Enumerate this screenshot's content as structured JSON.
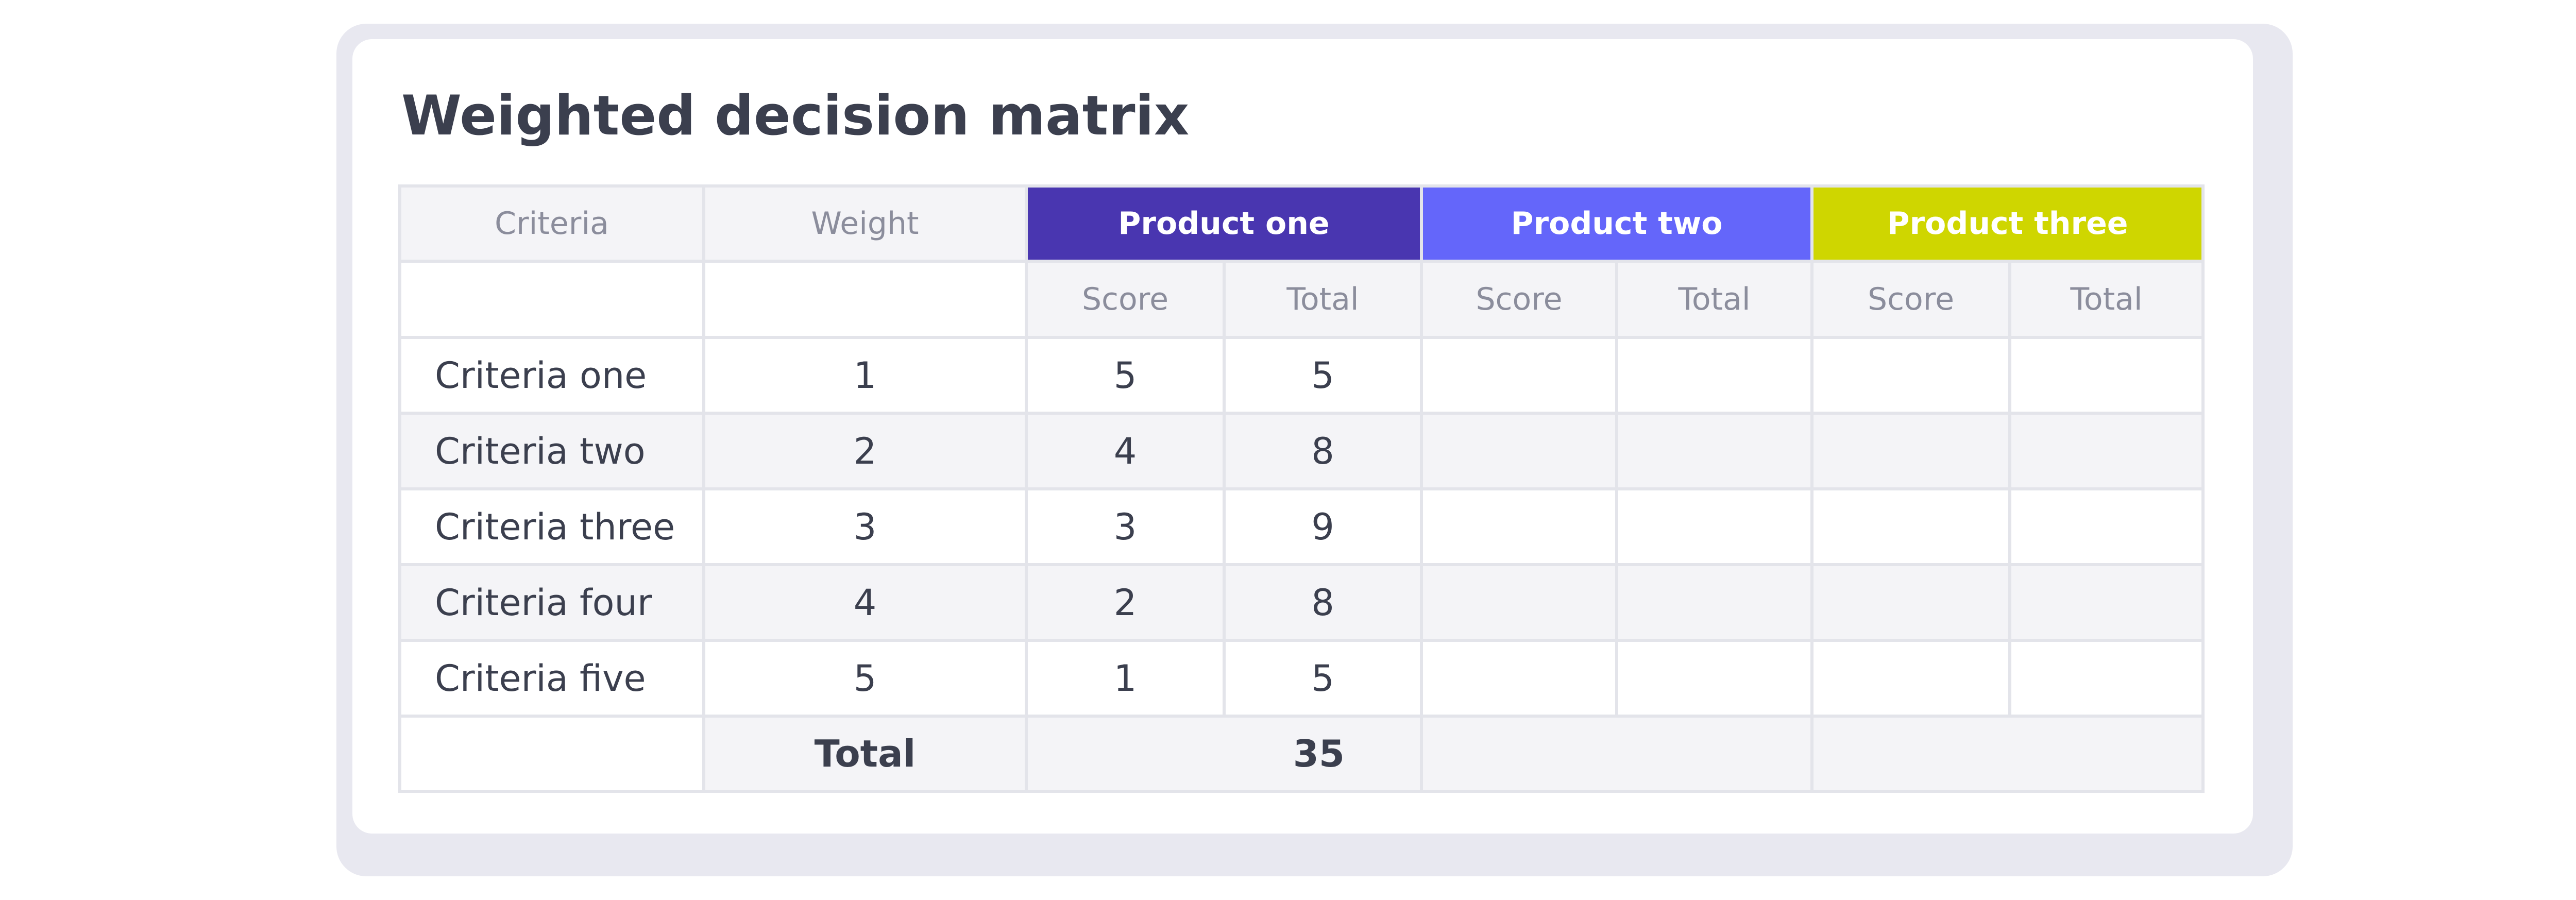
{
  "title": "Weighted decision matrix",
  "colors": {
    "product_one": "#4936b0",
    "product_two": "#6466fa",
    "product_three": "#cfd600",
    "header_grey": "#f4f4f7",
    "frame": "#e8e8f0"
  },
  "header": {
    "criteria": "Criteria",
    "weight": "Weight",
    "products": [
      "Product one",
      "Product two",
      "Product three"
    ]
  },
  "subheader": {
    "score": "Score",
    "total": "Total"
  },
  "rows": [
    {
      "criteria": "Criteria one",
      "weight": "1",
      "p1_score": "5",
      "p1_total": "5",
      "p2_score": "",
      "p2_total": "",
      "p3_score": "",
      "p3_total": ""
    },
    {
      "criteria": "Criteria two",
      "weight": "2",
      "p1_score": "4",
      "p1_total": "8",
      "p2_score": "",
      "p2_total": "",
      "p3_score": "",
      "p3_total": ""
    },
    {
      "criteria": "Criteria three",
      "weight": "3",
      "p1_score": "3",
      "p1_total": "9",
      "p2_score": "",
      "p2_total": "",
      "p3_score": "",
      "p3_total": ""
    },
    {
      "criteria": "Criteria four",
      "weight": "4",
      "p1_score": "2",
      "p1_total": "8",
      "p2_score": "",
      "p2_total": "",
      "p3_score": "",
      "p3_total": ""
    },
    {
      "criteria": "Criteria five",
      "weight": "5",
      "p1_score": "1",
      "p1_total": "5",
      "p2_score": "",
      "p2_total": "",
      "p3_score": "",
      "p3_total": ""
    }
  ],
  "footer": {
    "label": "Total",
    "p1_total": "35",
    "p2_total": "",
    "p3_total": ""
  }
}
